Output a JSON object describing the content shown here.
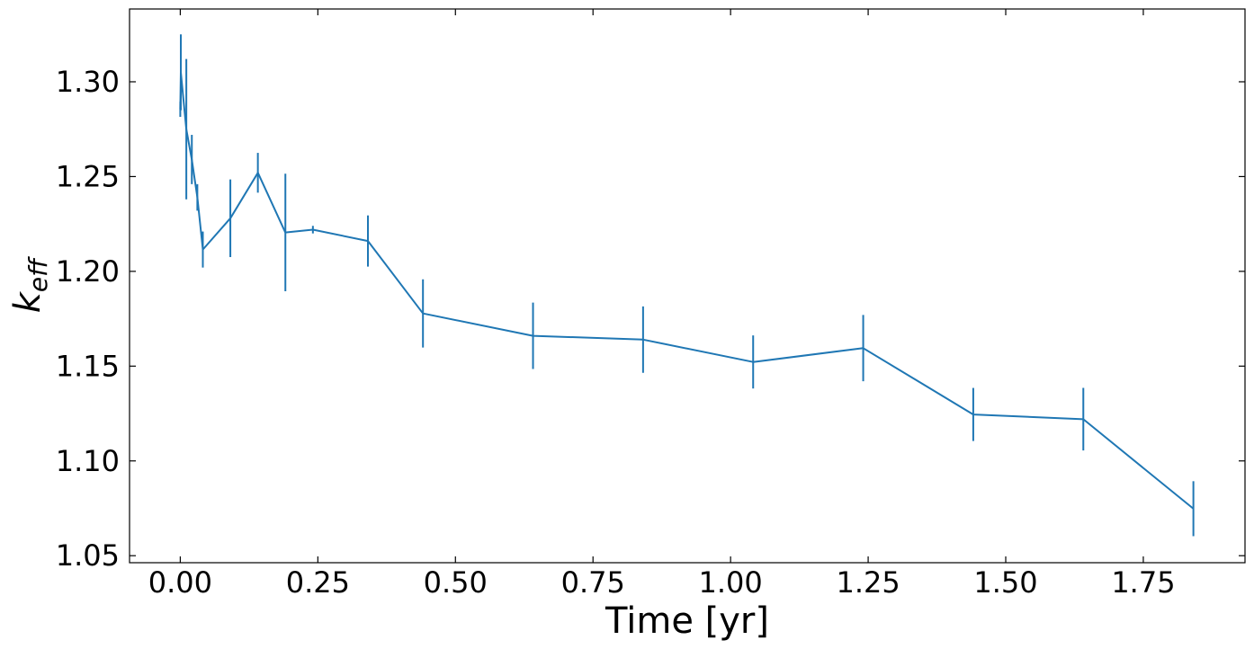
{
  "chart_data": {
    "type": "line",
    "title": "",
    "xlabel": "Time [yr]",
    "ylabel": {
      "base": "k",
      "subscript": "eff"
    },
    "xlim": [
      -0.0922,
      1.9348
    ],
    "ylim": [
      1.0463,
      1.3384
    ],
    "xticks": [
      0.0,
      0.25,
      0.5,
      0.75,
      1.0,
      1.25,
      1.5,
      1.75
    ],
    "xtick_labels": [
      "0.00",
      "0.25",
      "0.50",
      "0.75",
      "1.00",
      "1.25",
      "1.50",
      "1.75"
    ],
    "yticks": [
      1.05,
      1.1,
      1.15,
      1.2,
      1.25,
      1.3
    ],
    "ytick_labels": [
      "1.05",
      "1.10",
      "1.15",
      "1.20",
      "1.25",
      "1.30"
    ],
    "grid": false,
    "ticks_direction": "in",
    "ticks_on_all_sides": true,
    "legend": null,
    "series": [
      {
        "color": "#1f77b4",
        "points": [
          {
            "x": 0.0,
            "y": 1.2855,
            "err": 0.004
          },
          {
            "x": 0.001,
            "y": 1.305,
            "err": 0.02
          },
          {
            "x": 0.011,
            "y": 1.275,
            "err": 0.037
          },
          {
            "x": 0.021,
            "y": 1.259,
            "err": 0.013
          },
          {
            "x": 0.031,
            "y": 1.239,
            "err": 0.007
          },
          {
            "x": 0.041,
            "y": 1.2115,
            "err": 0.0095
          },
          {
            "x": 0.091,
            "y": 1.228,
            "err": 0.0205
          },
          {
            "x": 0.141,
            "y": 1.252,
            "err": 0.0105
          },
          {
            "x": 0.191,
            "y": 1.2205,
            "err": 0.031
          },
          {
            "x": 0.241,
            "y": 1.222,
            "err": 0.002
          },
          {
            "x": 0.341,
            "y": 1.216,
            "err": 0.0135
          },
          {
            "x": 0.441,
            "y": 1.1778,
            "err": 0.018
          },
          {
            "x": 0.641,
            "y": 1.166,
            "err": 0.0175
          },
          {
            "x": 0.841,
            "y": 1.164,
            "err": 0.0175
          },
          {
            "x": 1.041,
            "y": 1.1522,
            "err": 0.014
          },
          {
            "x": 1.241,
            "y": 1.1595,
            "err": 0.0175
          },
          {
            "x": 1.441,
            "y": 1.1245,
            "err": 0.014
          },
          {
            "x": 1.641,
            "y": 1.122,
            "err": 0.0165
          },
          {
            "x": 1.841,
            "y": 1.0748,
            "err": 0.0145
          }
        ]
      }
    ]
  }
}
